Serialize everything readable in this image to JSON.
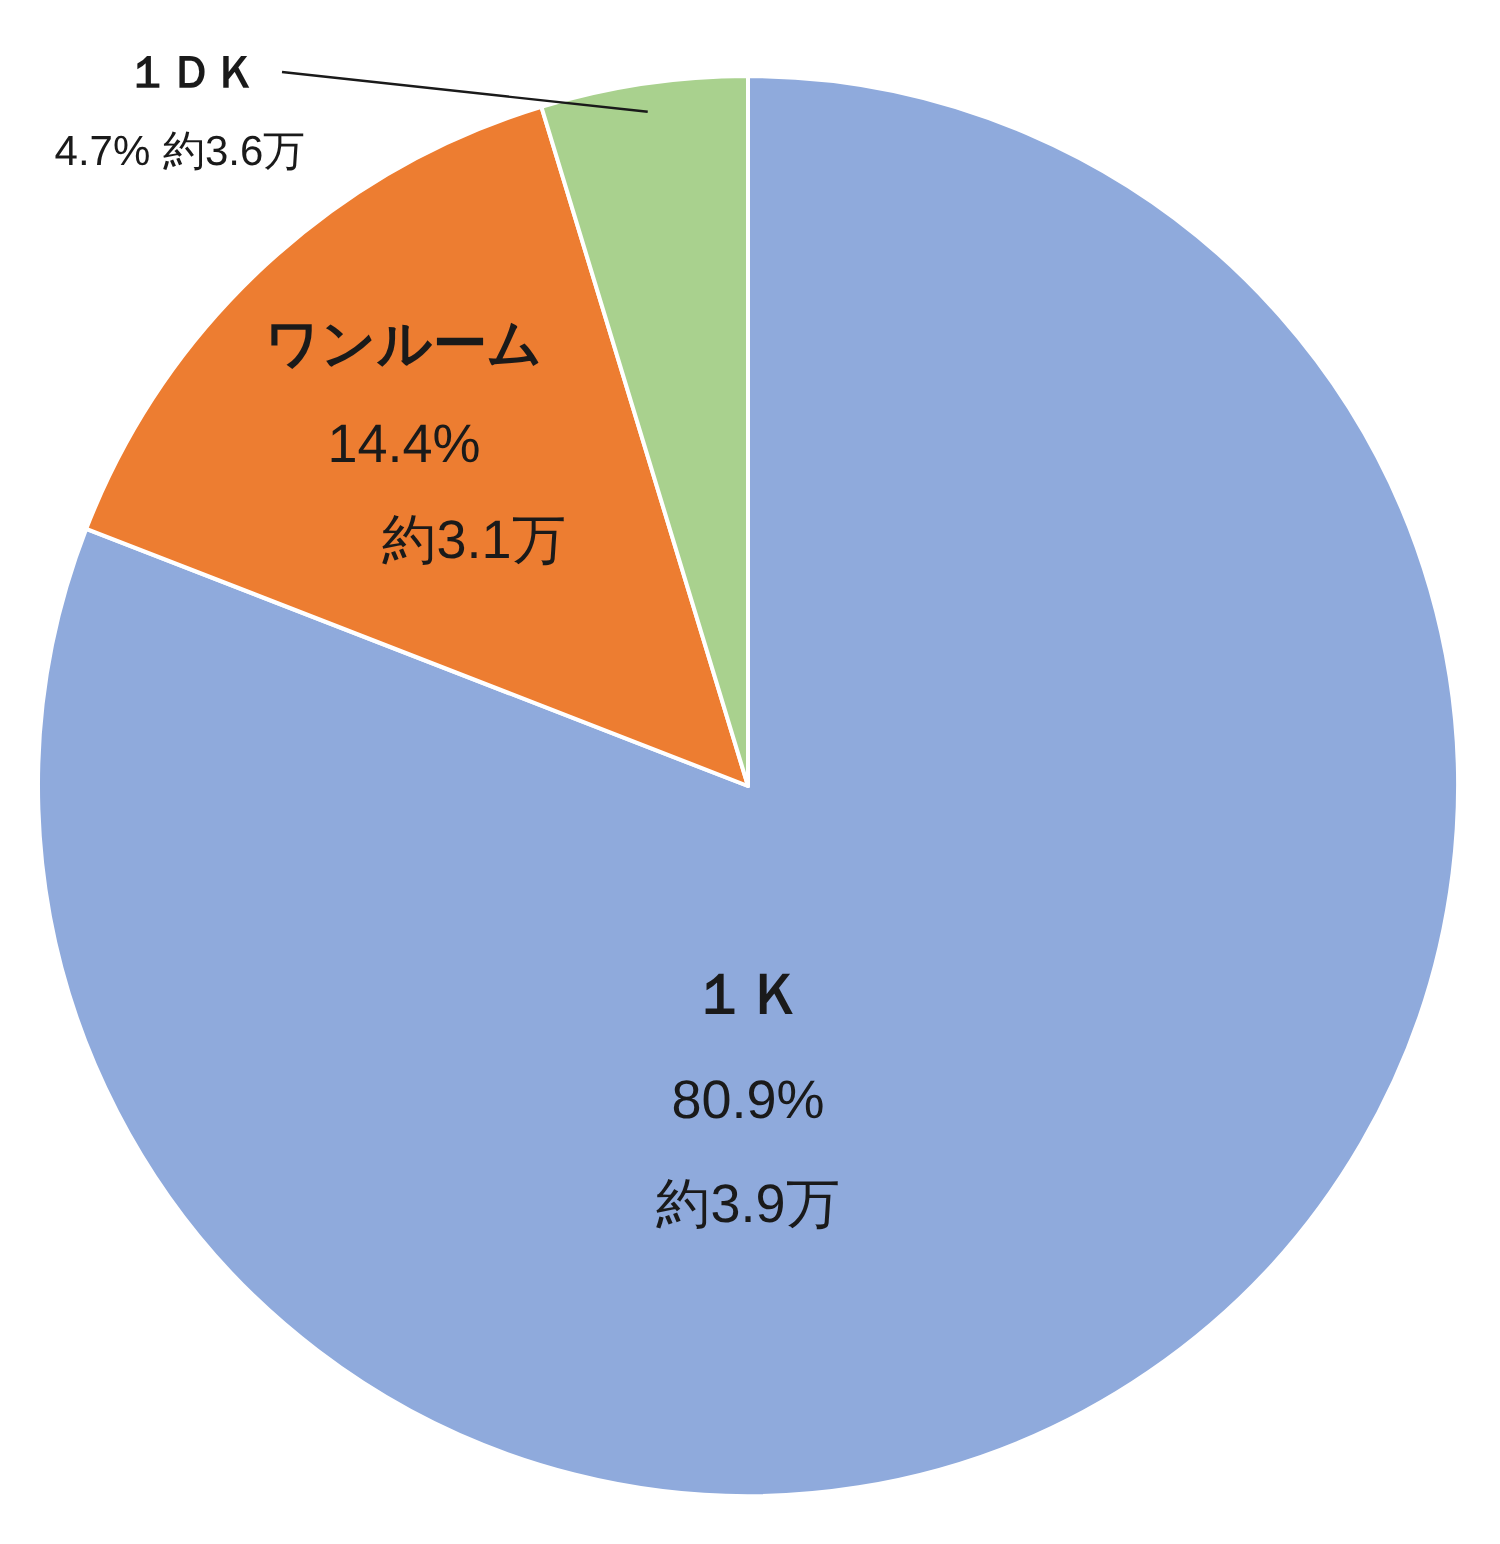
{
  "chart_data": {
    "type": "pie",
    "categories": [
      "１Ｋ",
      "ワンルーム",
      "１ＤＫ"
    ],
    "values": [
      80.9,
      14.4,
      4.7
    ],
    "colors": [
      "#8faadc",
      "#ed7d31",
      "#a9d18e"
    ],
    "value_labels": [
      "80.9%",
      "14.4%",
      "4.7%"
    ],
    "annotations": [
      {
        "text": "約3.9万",
        "x": "１Ｋ"
      },
      {
        "text": "約3.1万",
        "x": "ワンルーム"
      },
      {
        "text": "約3.6万",
        "x": "１ＤＫ"
      }
    ]
  }
}
